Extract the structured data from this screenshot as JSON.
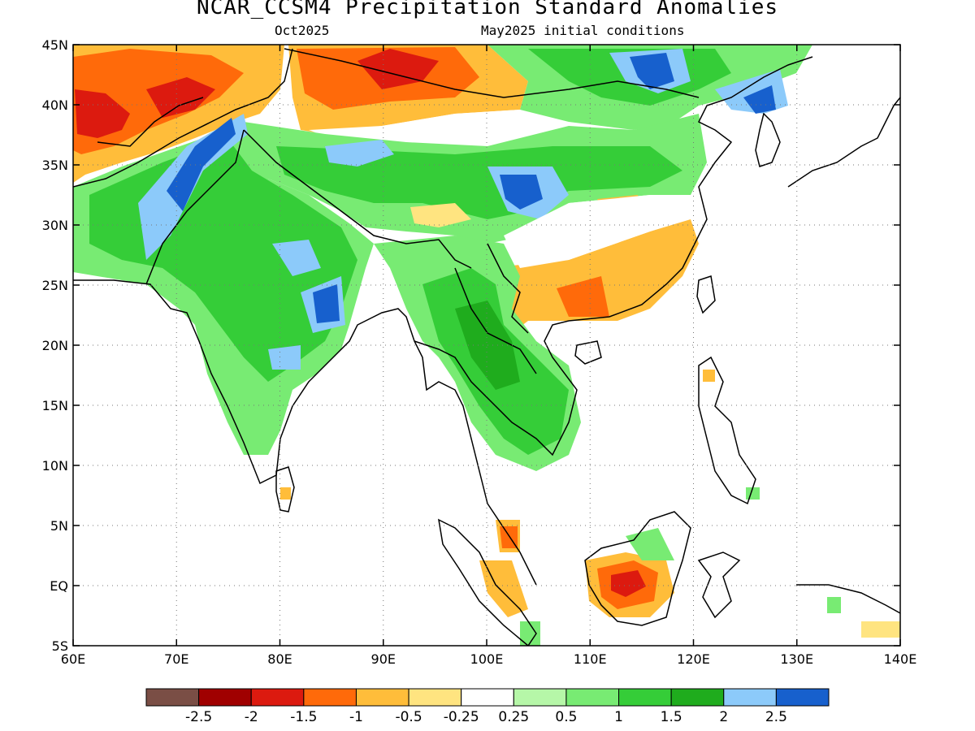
{
  "title": "NCAR_CCSM4 Precipitation Standard Anomalies",
  "subtitle_left": "Oct2025",
  "subtitle_right": "May2025 initial conditions",
  "lat_ticks": [
    {
      "value": 45,
      "label": "45N"
    },
    {
      "value": 40,
      "label": "40N"
    },
    {
      "value": 35,
      "label": "35N"
    },
    {
      "value": 30,
      "label": "30N"
    },
    {
      "value": 25,
      "label": "25N"
    },
    {
      "value": 20,
      "label": "20N"
    },
    {
      "value": 15,
      "label": "15N"
    },
    {
      "value": 10,
      "label": "10N"
    },
    {
      "value": 5,
      "label": "5N"
    },
    {
      "value": 0,
      "label": "EQ"
    },
    {
      "value": -5,
      "label": "5S"
    }
  ],
  "lon_ticks": [
    {
      "value": 60,
      "label": "60E"
    },
    {
      "value": 70,
      "label": "70E"
    },
    {
      "value": 80,
      "label": "80E"
    },
    {
      "value": 90,
      "label": "90E"
    },
    {
      "value": 100,
      "label": "100E"
    },
    {
      "value": 110,
      "label": "110E"
    },
    {
      "value": 120,
      "label": "120E"
    },
    {
      "value": 130,
      "label": "130E"
    },
    {
      "value": 140,
      "label": "140E"
    }
  ],
  "extent": {
    "lon": [
      60,
      140
    ],
    "lat": [
      -5,
      45
    ]
  },
  "colorbar": {
    "colors": [
      "#7a4e45",
      "#a00000",
      "#dc1a0f",
      "#ff6a0a",
      "#ffbd3a",
      "#ffe480",
      "#ffffff",
      "#b6f7a8",
      "#78eb73",
      "#35cd38",
      "#1fac1d",
      "#8ccafa",
      "#1760cd"
    ],
    "labels": [
      "-2.5",
      "-2",
      "-1.5",
      "-1",
      "-0.5",
      "-0.25",
      "0.25",
      "0.5",
      "1",
      "1.5",
      "2",
      "2.5"
    ]
  },
  "legend_colors": {
    "very_wet": "#1760cd",
    "wet": "#8ccafa",
    "green2": "#1fac1d",
    "green15": "#35cd38",
    "green1": "#78eb73",
    "green05": "#b6f7a8",
    "dry025": "#ffe480",
    "dry05": "#ffbd3a",
    "dry1": "#ff6a0a",
    "dry15": "#dc1a0f",
    "dry2": "#a00000"
  }
}
